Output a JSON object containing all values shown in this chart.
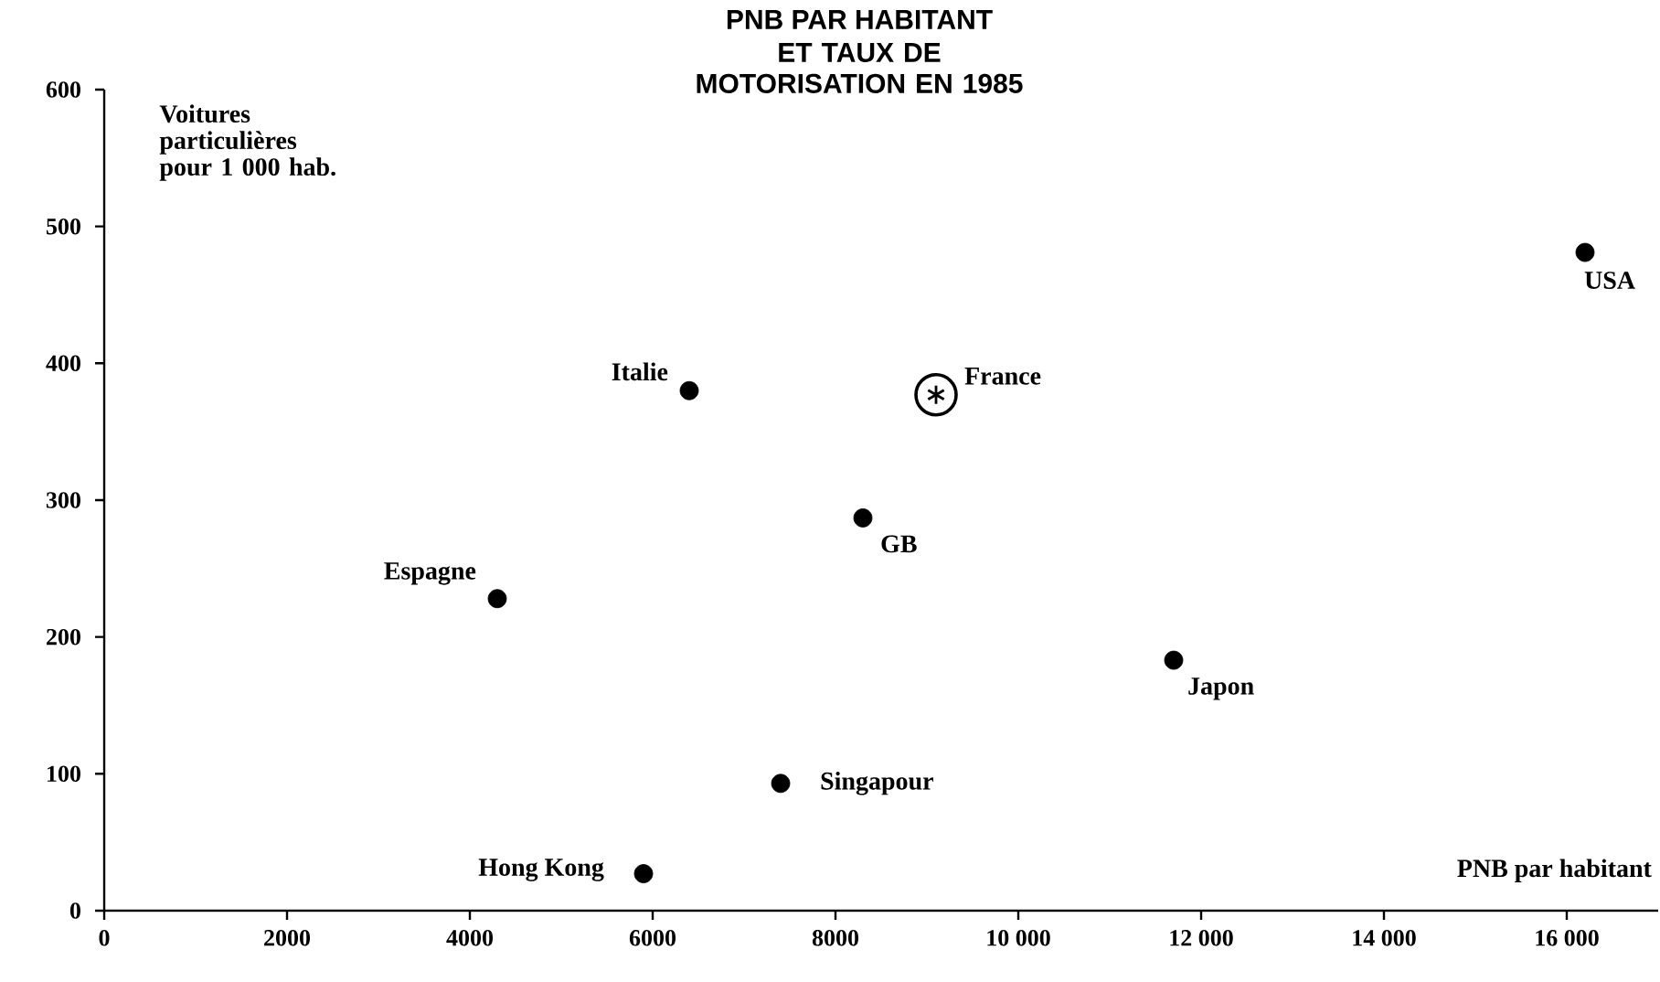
{
  "chart_data": {
    "type": "scatter",
    "title": "PNB PAR HABITANT",
    "subtitle": "ET TAUX DE MOTORISATION EN 1985",
    "xlabel": "PNB par habitant",
    "ylabel": "Voitures particulières pour 1 000 hab.",
    "xlim": [
      0,
      17000
    ],
    "ylim": [
      0,
      600
    ],
    "xticks": [
      0,
      2000,
      4000,
      6000,
      8000,
      {
        "value": 10000,
        "label": "10 000"
      },
      {
        "value": 12000,
        "label": "12 000"
      },
      {
        "value": 14000,
        "label": "14 000"
      },
      {
        "value": 16000,
        "label": "16 000"
      }
    ],
    "yticks": [
      0,
      100,
      200,
      300,
      400,
      500,
      600
    ],
    "series": [
      {
        "color": "#000000",
        "marker": "circle",
        "x": [
          6400,
          8300,
          4300,
          11700,
          16200
        ],
        "values": [
          380,
          287,
          228,
          183,
          481
        ]
      },
      {
        "color": "#000000",
        "marker": "star",
        "x": [
          9100
        ],
        "values": [
          377
        ]
      },
      {
        "color": "#000000",
        "marker": "circle",
        "x": [
          7400
        ],
        "values": [
          93
        ]
      },
      {
        "color": "#000000",
        "marker": "circle",
        "x": [
          5900
        ],
        "values": [
          27
        ]
      }
    ],
    "annotations": [
      {
        "text": "Italie",
        "x": 6400,
        "y": 380
      },
      {
        "text": "France",
        "x": 9100,
        "y": 377
      },
      {
        "text": "GB",
        "x": 8300,
        "y": 287
      },
      {
        "text": "Espagne",
        "x": 4300,
        "y": 228
      },
      {
        "text": "Japon",
        "x": 11700,
        "y": 183
      },
      {
        "text": "Singapour",
        "x": 7400,
        "y": 93
      },
      {
        "text": "Hong Kong",
        "x": 5900,
        "y": 27
      },
      {
        "text": "USA",
        "x": 16200,
        "y": 481
      }
    ]
  }
}
